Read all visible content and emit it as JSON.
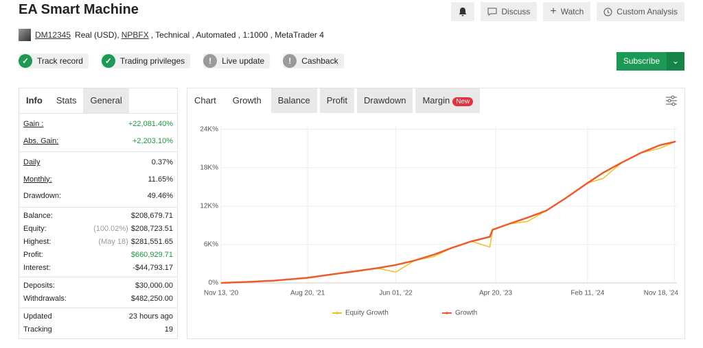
{
  "header": {
    "title": "EA Smart Machine",
    "user": "DM12345",
    "account_type": "Real (USD),",
    "broker": "NPBFX",
    "details": ", Technical , Automated , 1:1000 , MetaTrader 4",
    "buttons": [
      "Discuss",
      "Watch",
      "Custom Analysis"
    ],
    "badges": [
      {
        "label": "Track record",
        "verified": true
      },
      {
        "label": "Trading privileges",
        "verified": true
      },
      {
        "label": "Live update",
        "verified": false
      },
      {
        "label": "Cashback",
        "verified": false
      }
    ],
    "subscribe": "Subscribe"
  },
  "stats": {
    "tabs": [
      "Info",
      "Stats",
      "General"
    ],
    "groups": [
      [
        {
          "label": "Gain :",
          "value": "+22,081.40%",
          "link": true,
          "color": "#1a9a3a"
        },
        {
          "label": "Abs. Gain:",
          "value": "+2,203.10%",
          "link": true,
          "color": "#1a9a3a"
        }
      ],
      [
        {
          "label": "Daily",
          "value": "0.37%",
          "link": true
        },
        {
          "label": "Monthly:",
          "value": "11.65%",
          "link": true
        },
        {
          "label": "Drawdown:",
          "value": "49.46%"
        }
      ],
      [
        {
          "label": "Balance:",
          "value": "$208,679.71"
        },
        {
          "label": "Equity:",
          "note": "(100.02%)",
          "value": "$208,723.51"
        },
        {
          "label": "Highest:",
          "note": "(May 18)",
          "value": "$281,551.65"
        },
        {
          "label": "Profit:",
          "value": "$660,929.71",
          "color": "#1a9a3a"
        },
        {
          "label": "Interest:",
          "value": "-$44,793.17"
        }
      ],
      [
        {
          "label": "Deposits:",
          "value": "$30,000.00"
        },
        {
          "label": "Withdrawals:",
          "value": "$482,250.00"
        }
      ],
      [
        {
          "label": "Updated",
          "value": "23 hours ago"
        },
        {
          "label": "Tracking",
          "value": "19"
        }
      ]
    ]
  },
  "chart_tabs": [
    "Chart",
    "Growth",
    "Balance",
    "Profit",
    "Drawdown",
    "Margin"
  ],
  "new_badge": "New",
  "chart_data": {
    "type": "line",
    "x": [
      "2020-11-13",
      "2021-02-01",
      "2021-05-01",
      "2021-08-20",
      "2021-11-01",
      "2022-02-01",
      "2022-04-01",
      "2022-06-01",
      "2022-08-01",
      "2022-10-01",
      "2022-12-01",
      "2023-02-01",
      "2023-04-01",
      "2023-04-10",
      "2023-06-01",
      "2023-08-01",
      "2023-10-01",
      "2023-12-01",
      "2024-02-11",
      "2024-04-01",
      "2024-06-01",
      "2024-08-01",
      "2024-10-01",
      "2024-11-22"
    ],
    "series": [
      {
        "name": "Equity Growth",
        "color": "#f0c020",
        "values": [
          0,
          150,
          350,
          750,
          1300,
          1850,
          2300,
          1700,
          3500,
          4100,
          5500,
          6500,
          5600,
          8300,
          9200,
          9600,
          11300,
          13200,
          15600,
          16300,
          18800,
          20300,
          21000,
          22081
        ]
      },
      {
        "name": "Growth",
        "color": "#ef5a2a",
        "values": [
          0,
          150,
          350,
          800,
          1300,
          1900,
          2300,
          2800,
          3500,
          4400,
          5500,
          6500,
          7200,
          8300,
          9200,
          10200,
          11300,
          13200,
          15600,
          17200,
          18800,
          20300,
          21500,
          22081
        ]
      }
    ],
    "xlim": [
      "2020-11-13",
      "2024-11-26"
    ],
    "xticks": [
      {
        "value": "2020-11-13",
        "label": "Nov 13, '20"
      },
      {
        "value": "2021-08-20",
        "label": "Aug 20, '21"
      },
      {
        "value": "2022-06-01",
        "label": "Jun 01, '22"
      },
      {
        "value": "2023-04-20",
        "label": "Apr 20, '23"
      },
      {
        "value": "2024-02-11",
        "label": "Feb 11, '24"
      },
      {
        "value": "2024-11-18",
        "label": "Nov 18, '24"
      }
    ],
    "ylim": [
      0,
      24500
    ],
    "yticks": [
      {
        "value": 0,
        "label": "0%"
      },
      {
        "value": 6000,
        "label": "6K%"
      },
      {
        "value": 12000,
        "label": "12K%"
      },
      {
        "value": 18000,
        "label": "18K%"
      },
      {
        "value": 24000,
        "label": "24K%"
      }
    ],
    "grid": true
  }
}
